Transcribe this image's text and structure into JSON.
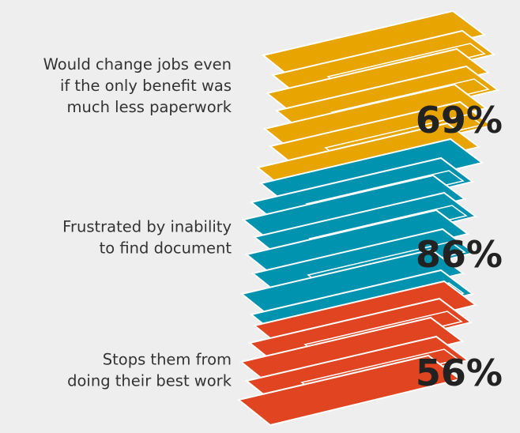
{
  "items": [
    {
      "lines": [
        "Would change jobs even",
        "if the only benefit was",
        "much less paperwork"
      ],
      "value": "69%"
    },
    {
      "lines": [
        "Frustrated by inability",
        "to find document"
      ],
      "value": "86%"
    },
    {
      "lines": [
        "Stops them from",
        "doing their best work"
      ],
      "value": "56%"
    }
  ]
}
